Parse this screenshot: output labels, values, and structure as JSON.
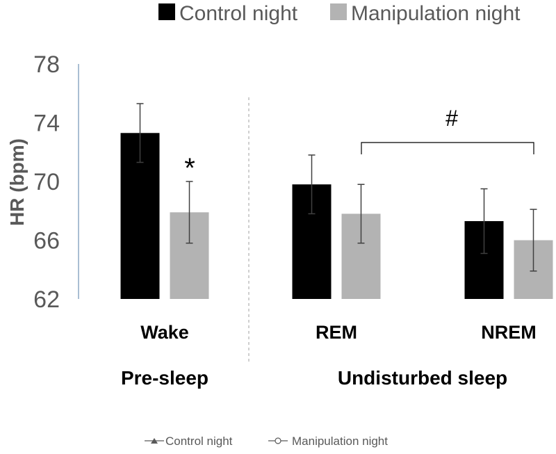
{
  "chart_data": {
    "type": "bar",
    "ylabel": "HR (bpm)",
    "ylim": [
      62,
      78
    ],
    "yticks": [
      62,
      66,
      70,
      74,
      78
    ],
    "categories": [
      "Wake",
      "REM",
      "NREM"
    ],
    "groups": [
      {
        "label": "Pre-sleep",
        "categories": [
          "Wake"
        ]
      },
      {
        "label": "Undisturbed sleep",
        "categories": [
          "REM",
          "NREM"
        ]
      }
    ],
    "series": [
      {
        "name": "Control night",
        "color": "#000000",
        "values": [
          73.3,
          69.8,
          67.3
        ],
        "errors": [
          2.0,
          2.0,
          2.2
        ]
      },
      {
        "name": "Manipulation night",
        "color": "#b3b3b3",
        "values": [
          67.9,
          67.8,
          66.0
        ],
        "errors": [
          2.1,
          2.0,
          2.1
        ]
      }
    ],
    "annotations": [
      {
        "text": "*",
        "category": "Wake",
        "series": "Manipulation night"
      },
      {
        "text": "#",
        "between": [
          "REM",
          "NREM"
        ]
      }
    ],
    "legend_top": [
      "Control night",
      "Manipulation night"
    ],
    "legend_bottom": [
      "Control night",
      "Manipulation night"
    ],
    "legend_placement": "top-right",
    "grid": false
  }
}
